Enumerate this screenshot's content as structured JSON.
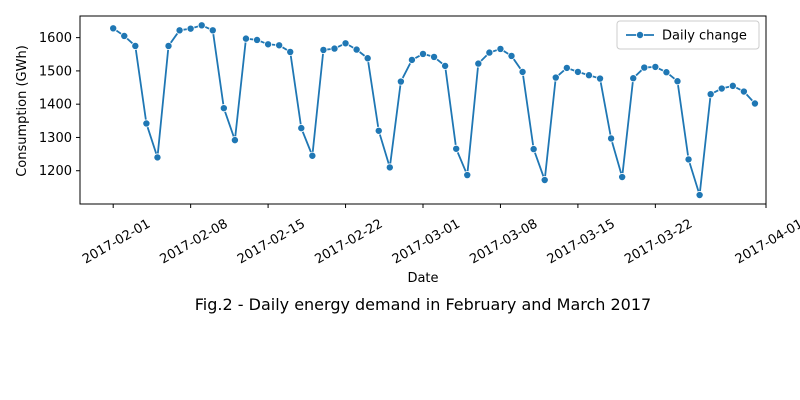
{
  "caption": "Fig.2 - Daily energy demand in February and March 2017",
  "colors": {
    "series": "#1f77b4",
    "axis": "#000000",
    "background": "#ffffff"
  },
  "chart_data": {
    "type": "line",
    "xlabel": "Date",
    "ylabel": "Consumption (GWh)",
    "xlim": [
      "2017-01-29",
      "2017-04-01"
    ],
    "ylim": [
      1100,
      1665
    ],
    "grid": false,
    "legend_position": "top-right",
    "x_ticks": [
      "2017-02-01",
      "2017-02-08",
      "2017-02-15",
      "2017-02-22",
      "2017-03-01",
      "2017-03-08",
      "2017-03-15",
      "2017-03-22",
      "2017-04-01"
    ],
    "y_ticks": [
      1200,
      1300,
      1400,
      1500,
      1600
    ],
    "series": [
      {
        "name": "Daily change",
        "marker": "circle",
        "x": [
          "2017-02-01",
          "2017-02-02",
          "2017-02-03",
          "2017-02-04",
          "2017-02-05",
          "2017-02-06",
          "2017-02-07",
          "2017-02-08",
          "2017-02-09",
          "2017-02-10",
          "2017-02-11",
          "2017-02-12",
          "2017-02-13",
          "2017-02-14",
          "2017-02-15",
          "2017-02-16",
          "2017-02-17",
          "2017-02-18",
          "2017-02-19",
          "2017-02-20",
          "2017-02-21",
          "2017-02-22",
          "2017-02-23",
          "2017-02-24",
          "2017-02-25",
          "2017-02-26",
          "2017-02-27",
          "2017-02-28",
          "2017-03-01",
          "2017-03-02",
          "2017-03-03",
          "2017-03-04",
          "2017-03-05",
          "2017-03-06",
          "2017-03-07",
          "2017-03-08",
          "2017-03-09",
          "2017-03-10",
          "2017-03-11",
          "2017-03-12",
          "2017-03-13",
          "2017-03-14",
          "2017-03-15",
          "2017-03-16",
          "2017-03-17",
          "2017-03-18",
          "2017-03-19",
          "2017-03-20",
          "2017-03-21",
          "2017-03-22",
          "2017-03-23",
          "2017-03-24",
          "2017-03-25",
          "2017-03-26",
          "2017-03-27",
          "2017-03-28",
          "2017-03-29",
          "2017-03-30",
          "2017-03-31"
        ],
        "values": [
          1628,
          1605,
          1575,
          1342,
          1240,
          1575,
          1622,
          1627,
          1637,
          1622,
          1388,
          1292,
          1597,
          1593,
          1580,
          1577,
          1557,
          1328,
          1245,
          1563,
          1567,
          1583,
          1564,
          1538,
          1320,
          1210,
          1468,
          1533,
          1551,
          1542,
          1515,
          1266,
          1187,
          1522,
          1555,
          1566,
          1545,
          1497,
          1265,
          1172,
          1480,
          1509,
          1497,
          1487,
          1477,
          1297,
          1181,
          1478,
          1510,
          1512,
          1496,
          1469,
          1234,
          1127,
          1430,
          1447,
          1455,
          1438,
          1402
        ]
      }
    ]
  }
}
